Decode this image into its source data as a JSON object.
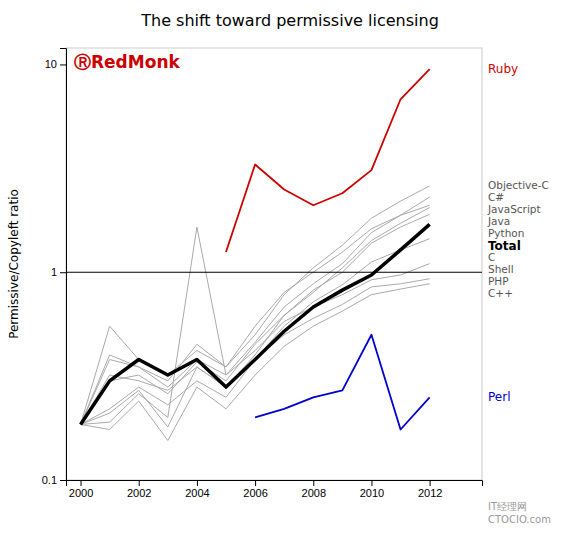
{
  "chart_data": {
    "type": "line",
    "title": "The shift toward permissive licensing",
    "y_label": "Permissive/Copyleft ratio",
    "log": "y",
    "grid": false,
    "xlim": [
      1999.5,
      2013.8
    ],
    "xticks": [
      2000,
      2002,
      2004,
      2006,
      2008,
      2010,
      2012
    ],
    "ylim": [
      0.1,
      12.0
    ],
    "yticks": [
      0.1,
      1,
      10
    ],
    "hline": 1.0,
    "series": [
      {
        "name": "Objective-C",
        "color": "#aaaaaa",
        "line_style": "thin",
        "x": [
          2000,
          2001,
          2002,
          2003,
          2004,
          2005,
          2006,
          2007,
          2008,
          2009,
          2010,
          2011,
          2012
        ],
        "values": [
          0.185,
          0.55,
          0.38,
          0.32,
          0.42,
          0.35,
          0.5,
          0.78,
          1.05,
          1.35,
          1.82,
          2.2,
          2.6
        ]
      },
      {
        "name": "C#",
        "color": "#aaaaaa",
        "line_style": "thin",
        "x": [
          2000,
          2001,
          2002,
          2003,
          2004,
          2005,
          2006,
          2007,
          2008,
          2009,
          2010,
          2011,
          2012
        ],
        "values": [
          0.185,
          0.4,
          0.35,
          0.28,
          0.38,
          0.32,
          0.46,
          0.68,
          0.88,
          1.1,
          1.55,
          1.88,
          2.3
        ]
      },
      {
        "name": "Java",
        "color": "#aaaaaa",
        "line_style": "thin",
        "x": [
          2000,
          2001,
          2002,
          2003,
          2004,
          2005,
          2006,
          2007,
          2008,
          2009,
          2010,
          2011,
          2012
        ],
        "values": [
          0.185,
          0.32,
          0.3,
          0.27,
          0.35,
          0.28,
          0.4,
          0.62,
          0.8,
          1.05,
          1.42,
          1.72,
          2.05
        ]
      },
      {
        "name": "JavaScript",
        "color": "#aaaaaa",
        "line_style": "thin",
        "x": [
          2000,
          2001,
          2002,
          2003,
          2004,
          2005,
          2006,
          2007,
          2008,
          2009,
          2010,
          2011,
          2012
        ],
        "values": [
          0.185,
          0.38,
          0.35,
          0.3,
          0.45,
          0.35,
          0.55,
          0.8,
          1.0,
          1.25,
          1.62,
          1.88,
          2.1
        ]
      },
      {
        "name": "Python",
        "color": "#aaaaaa",
        "line_style": "thin",
        "x": [
          2000,
          2001,
          2002,
          2003,
          2004,
          2005,
          2006,
          2007,
          2008,
          2009,
          2010,
          2011,
          2012
        ],
        "values": [
          0.185,
          0.3,
          0.32,
          0.26,
          0.37,
          0.3,
          0.45,
          0.62,
          0.82,
          1.0,
          1.38,
          1.65,
          1.9
        ]
      },
      {
        "name": "C",
        "color": "#aaaaaa",
        "line_style": "thin",
        "x": [
          2000,
          2001,
          2002,
          2003,
          2004,
          2005,
          2006,
          2007,
          2008,
          2009,
          2010,
          2011,
          2012
        ],
        "values": [
          0.185,
          0.22,
          0.28,
          0.23,
          0.3,
          0.25,
          0.38,
          0.55,
          0.72,
          0.87,
          1.12,
          1.28,
          1.45
        ]
      },
      {
        "name": "Shell",
        "color": "#aaaaaa",
        "line_style": "thin",
        "x": [
          2000,
          2001,
          2002,
          2003,
          2004,
          2005,
          2006,
          2007,
          2008,
          2009,
          2010,
          2011,
          2012
        ],
        "values": [
          0.185,
          0.19,
          0.26,
          0.2,
          1.65,
          0.32,
          0.42,
          0.58,
          0.68,
          0.78,
          0.92,
          0.97,
          1.1
        ]
      },
      {
        "name": "PHP",
        "color": "#aaaaaa",
        "line_style": "thin",
        "x": [
          2000,
          2001,
          2002,
          2003,
          2004,
          2005,
          2006,
          2007,
          2008,
          2009,
          2010,
          2011,
          2012
        ],
        "values": [
          0.185,
          0.21,
          0.27,
          0.18,
          0.35,
          0.28,
          0.38,
          0.5,
          0.6,
          0.7,
          0.85,
          0.88,
          0.93
        ]
      },
      {
        "name": "C++",
        "color": "#aaaaaa",
        "line_style": "thin",
        "x": [
          2000,
          2001,
          2002,
          2003,
          2004,
          2005,
          2006,
          2007,
          2008,
          2009,
          2010,
          2011,
          2012
        ],
        "values": [
          0.185,
          0.175,
          0.24,
          0.155,
          0.28,
          0.22,
          0.32,
          0.44,
          0.55,
          0.65,
          0.78,
          0.83,
          0.88
        ]
      },
      {
        "name": "Ruby",
        "color": "#cc0000",
        "line_style": "solid",
        "x": [
          2005,
          2006,
          2007,
          2008,
          2009,
          2010,
          2011,
          2012
        ],
        "values": [
          1.25,
          3.3,
          2.5,
          2.1,
          2.4,
          3.1,
          6.8,
          9.5
        ]
      },
      {
        "name": "Perl",
        "color": "#0000cc",
        "line_style": "solid",
        "x": [
          2006,
          2007,
          2008,
          2009,
          2010,
          2011,
          2012
        ],
        "values": [
          0.2,
          0.22,
          0.25,
          0.27,
          0.5,
          0.175,
          0.25
        ]
      },
      {
        "name": "Total",
        "color": "#000000",
        "line_style": "thick",
        "x": [
          2000,
          2001,
          2002,
          2003,
          2004,
          2005,
          2006,
          2007,
          2008,
          2009,
          2010,
          2011,
          2012
        ],
        "values": [
          0.185,
          0.3,
          0.38,
          0.32,
          0.38,
          0.28,
          0.38,
          0.52,
          0.68,
          0.82,
          0.97,
          1.28,
          1.7
        ]
      }
    ],
    "annotations": [
      {
        "text": "ⓇRedMonk",
        "color": "#cc0000"
      },
      {
        "text": "IT经理网",
        "color": "#999999"
      },
      {
        "text": "CTOCIO.com",
        "color": "#999999"
      }
    ]
  }
}
